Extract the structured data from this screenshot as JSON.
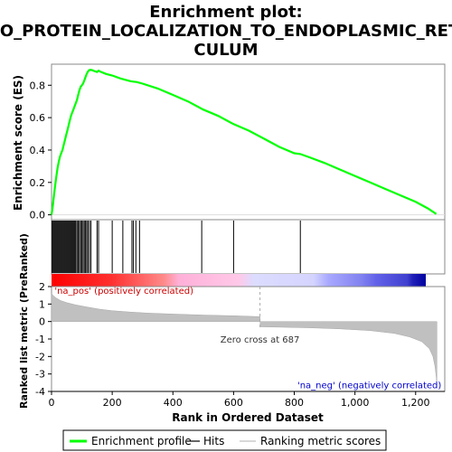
{
  "chart_data": {
    "type": "line",
    "title_lines": [
      "Enrichment plot:",
      "GO_PROTEIN_LOCALIZATION_TO_ENDOPLASMIC_RETI",
      "CULUM"
    ],
    "xlabel": "Rank in Ordered Dataset",
    "xlim": [
      0,
      1296
    ],
    "x_ticks": [
      0,
      200,
      400,
      600,
      800,
      1000,
      1200
    ],
    "x_tick_labels": [
      "0",
      "200",
      "400",
      "600",
      "800",
      "1,000",
      "1,200"
    ],
    "top_panel": {
      "ylabel": "Enrichment score (ES)",
      "ylim": [
        -0.03,
        0.93
      ],
      "y_ticks": [
        0.0,
        0.2,
        0.4,
        0.6,
        0.8
      ],
      "y_tick_labels": [
        "0.0",
        "0.2",
        "0.4",
        "0.6",
        "0.8"
      ],
      "series": [
        {
          "name": "Enrichment profile",
          "color": "#00ff00",
          "points": [
            [
              0,
              0.0
            ],
            [
              4,
              0.05
            ],
            [
              8,
              0.12
            ],
            [
              12,
              0.18
            ],
            [
              16,
              0.24
            ],
            [
              20,
              0.29
            ],
            [
              24,
              0.33
            ],
            [
              28,
              0.36
            ],
            [
              32,
              0.38
            ],
            [
              36,
              0.4
            ],
            [
              40,
              0.43
            ],
            [
              44,
              0.46
            ],
            [
              48,
              0.49
            ],
            [
              52,
              0.52
            ],
            [
              56,
              0.55
            ],
            [
              60,
              0.58
            ],
            [
              64,
              0.61
            ],
            [
              68,
              0.63
            ],
            [
              72,
              0.65
            ],
            [
              76,
              0.67
            ],
            [
              80,
              0.69
            ],
            [
              84,
              0.71
            ],
            [
              88,
              0.74
            ],
            [
              92,
              0.77
            ],
            [
              96,
              0.79
            ],
            [
              100,
              0.8
            ],
            [
              104,
              0.81
            ],
            [
              108,
              0.83
            ],
            [
              112,
              0.85
            ],
            [
              116,
              0.87
            ],
            [
              120,
              0.885
            ],
            [
              124,
              0.893
            ],
            [
              128,
              0.895
            ],
            [
              134,
              0.893
            ],
            [
              140,
              0.888
            ],
            [
              150,
              0.882
            ],
            [
              155,
              0.89
            ],
            [
              160,
              0.885
            ],
            [
              180,
              0.87
            ],
            [
              200,
              0.86
            ],
            [
              230,
              0.84
            ],
            [
              260,
              0.825
            ],
            [
              270,
              0.822
            ],
            [
              280,
              0.82
            ],
            [
              300,
              0.81
            ],
            [
              350,
              0.78
            ],
            [
              400,
              0.74
            ],
            [
              450,
              0.7
            ],
            [
              500,
              0.65
            ],
            [
              550,
              0.61
            ],
            [
              600,
              0.56
            ],
            [
              650,
              0.52
            ],
            [
              700,
              0.47
            ],
            [
              750,
              0.42
            ],
            [
              800,
              0.38
            ],
            [
              820,
              0.375
            ],
            [
              850,
              0.355
            ],
            [
              900,
              0.32
            ],
            [
              950,
              0.28
            ],
            [
              1000,
              0.24
            ],
            [
              1050,
              0.2
            ],
            [
              1100,
              0.16
            ],
            [
              1150,
              0.12
            ],
            [
              1200,
              0.08
            ],
            [
              1240,
              0.04
            ],
            [
              1268,
              0.005
            ]
          ]
        }
      ]
    },
    "hits_panel": {
      "name": "Hits",
      "hit_ranks": [
        2,
        5,
        8,
        11,
        14,
        17,
        20,
        23,
        26,
        29,
        32,
        35,
        38,
        41,
        44,
        47,
        50,
        53,
        56,
        59,
        62,
        65,
        68,
        71,
        74,
        77,
        80,
        84,
        88,
        92,
        96,
        100,
        104,
        108,
        112,
        116,
        120,
        125,
        130,
        150,
        155,
        200,
        235,
        265,
        270,
        278,
        290,
        495,
        600,
        820
      ]
    },
    "color_bar": {
      "zero_cross": 687
    },
    "bottom_panel": {
      "ylabel": "Ranked list metric (PreRanked)",
      "ylim": [
        -4,
        2
      ],
      "y_ticks": [
        -4,
        -3,
        -2,
        -1,
        0,
        1,
        2
      ],
      "y_tick_labels": [
        "-4",
        "-3",
        "-2",
        "-1",
        "0",
        "1",
        "2"
      ],
      "series": [
        {
          "name": "Ranking metric scores",
          "color": "#c0c0c0",
          "points": [
            [
              0,
              1.6
            ],
            [
              5,
              1.5
            ],
            [
              15,
              1.35
            ],
            [
              30,
              1.2
            ],
            [
              50,
              1.08
            ],
            [
              80,
              0.95
            ],
            [
              120,
              0.82
            ],
            [
              160,
              0.7
            ],
            [
              200,
              0.62
            ],
            [
              260,
              0.54
            ],
            [
              320,
              0.48
            ],
            [
              400,
              0.43
            ],
            [
              500,
              0.37
            ],
            [
              600,
              0.33
            ],
            [
              687,
              0.28
            ],
            [
              688,
              -0.3
            ],
            [
              750,
              -0.32
            ],
            [
              850,
              -0.36
            ],
            [
              950,
              -0.42
            ],
            [
              1050,
              -0.52
            ],
            [
              1130,
              -0.68
            ],
            [
              1180,
              -0.88
            ],
            [
              1220,
              -1.15
            ],
            [
              1245,
              -1.55
            ],
            [
              1257,
              -2.0
            ],
            [
              1264,
              -2.6
            ],
            [
              1268,
              -3.2
            ],
            [
              1270,
              -3.7
            ]
          ]
        }
      ],
      "annotations": [
        {
          "text": "'na_pos' (positively correlated)",
          "x": 10,
          "y": 1.8,
          "color": "#cc0000"
        },
        {
          "text": "Zero cross at 687",
          "x": 687,
          "y": -1.0,
          "color": "#333333"
        },
        {
          "text": "'na_neg' (negatively correlated)",
          "x": 1285,
          "y": -3.6,
          "color": "#0000cc"
        }
      ]
    },
    "legend": [
      {
        "label": "Enrichment profile",
        "color": "#00ff00",
        "style": "thick-line"
      },
      {
        "label": "Hits",
        "color": "#000000",
        "style": "line"
      },
      {
        "label": "Ranking metric scores",
        "color": "#c0c0c0",
        "style": "line"
      }
    ]
  }
}
